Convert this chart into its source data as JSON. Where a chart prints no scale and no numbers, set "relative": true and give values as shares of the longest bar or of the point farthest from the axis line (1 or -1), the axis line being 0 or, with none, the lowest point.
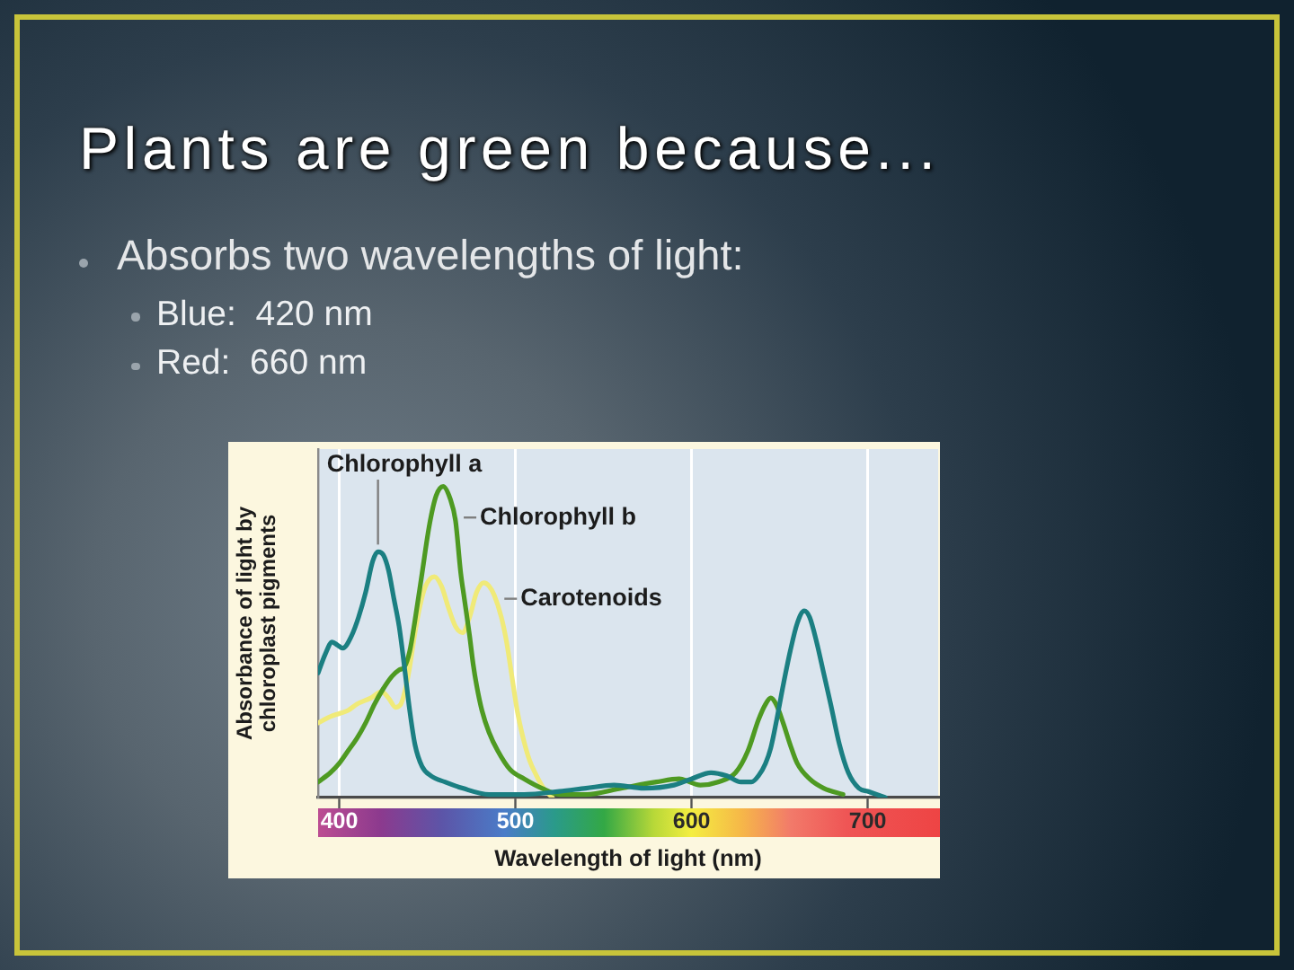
{
  "chart_data": {
    "type": "line",
    "title": "Plants are green because...",
    "subtitle": "Absorbs two wavelengths of light:",
    "annotations": [
      "Blue:  420 nm",
      "Red:  660 nm"
    ],
    "xlabel": "Wavelength of light (nm)",
    "ylabel": "Absorbance of light by chloroplast pigments",
    "relative": true,
    "xlim": [
      388,
      740
    ],
    "xticks": [
      400,
      500,
      600,
      700
    ],
    "grid": "x",
    "marker": "none",
    "line_style": "solid",
    "series": [
      {
        "name": "Chlorophyll a",
        "color": "#1b7f82",
        "x": [
          388,
          392,
          396,
          399,
          402,
          407,
          411,
          415,
          419,
          422,
          425,
          428,
          431,
          434,
          437,
          440,
          443,
          447,
          452,
          460,
          470,
          485,
          505,
          525,
          540,
          556,
          573,
          590,
          600,
          611,
          620,
          628,
          634,
          638,
          642,
          645,
          648,
          652,
          656,
          660,
          664,
          667,
          671,
          675,
          679,
          684,
          689,
          695,
          700,
          705,
          710
        ],
        "values": [
          0.4,
          0.46,
          0.5,
          0.49,
          0.48,
          0.52,
          0.58,
          0.66,
          0.76,
          0.79,
          0.78,
          0.73,
          0.64,
          0.55,
          0.42,
          0.28,
          0.17,
          0.1,
          0.07,
          0.05,
          0.03,
          0.01,
          0.01,
          0.02,
          0.03,
          0.04,
          0.03,
          0.04,
          0.06,
          0.08,
          0.07,
          0.05,
          0.05,
          0.07,
          0.11,
          0.16,
          0.24,
          0.36,
          0.47,
          0.56,
          0.6,
          0.58,
          0.5,
          0.4,
          0.3,
          0.17,
          0.08,
          0.03,
          0.02,
          0.01,
          0
        ]
      },
      {
        "name": "Chlorophyll b",
        "color": "#4e9a22",
        "x": [
          388,
          395,
          400,
          405,
          410,
          415,
          420,
          425,
          430,
          434,
          437,
          440,
          443,
          447,
          451,
          455,
          459,
          463,
          466,
          469,
          471,
          474,
          476,
          478,
          481,
          485,
          490,
          497,
          505,
          515,
          525,
          540,
          560,
          580,
          593,
          605,
          615,
          625,
          632,
          638,
          642,
          645,
          648,
          652,
          656,
          660,
          667,
          675,
          686
        ],
        "values": [
          0.05,
          0.08,
          0.11,
          0.15,
          0.19,
          0.24,
          0.3,
          0.35,
          0.39,
          0.41,
          0.42,
          0.47,
          0.57,
          0.72,
          0.87,
          0.97,
          1,
          0.96,
          0.89,
          0.72,
          0.64,
          0.52,
          0.43,
          0.36,
          0.28,
          0.21,
          0.15,
          0.09,
          0.06,
          0.03,
          0.01,
          0.01,
          0.03,
          0.05,
          0.06,
          0.04,
          0.05,
          0.08,
          0.15,
          0.25,
          0.3,
          0.32,
          0.3,
          0.24,
          0.17,
          0.11,
          0.06,
          0.03,
          0.01
        ]
      },
      {
        "name": "Carotenoids",
        "color": "#f0ea78",
        "x": [
          388,
          395,
          400,
          405,
          410,
          418,
          424,
          428,
          432,
          435,
          438,
          440,
          443,
          446,
          449,
          454,
          458,
          462,
          466,
          470,
          474,
          478,
          482,
          485,
          488,
          492,
          495,
          498,
          501,
          504,
          508,
          512,
          516,
          521
        ],
        "values": [
          0.24,
          0.26,
          0.27,
          0.28,
          0.3,
          0.32,
          0.34,
          0.32,
          0.29,
          0.3,
          0.36,
          0.42,
          0.53,
          0.62,
          0.68,
          0.71,
          0.68,
          0.61,
          0.55,
          0.53,
          0.58,
          0.66,
          0.69,
          0.68,
          0.65,
          0.58,
          0.5,
          0.39,
          0.28,
          0.2,
          0.12,
          0.07,
          0.03,
          0
        ]
      }
    ]
  }
}
